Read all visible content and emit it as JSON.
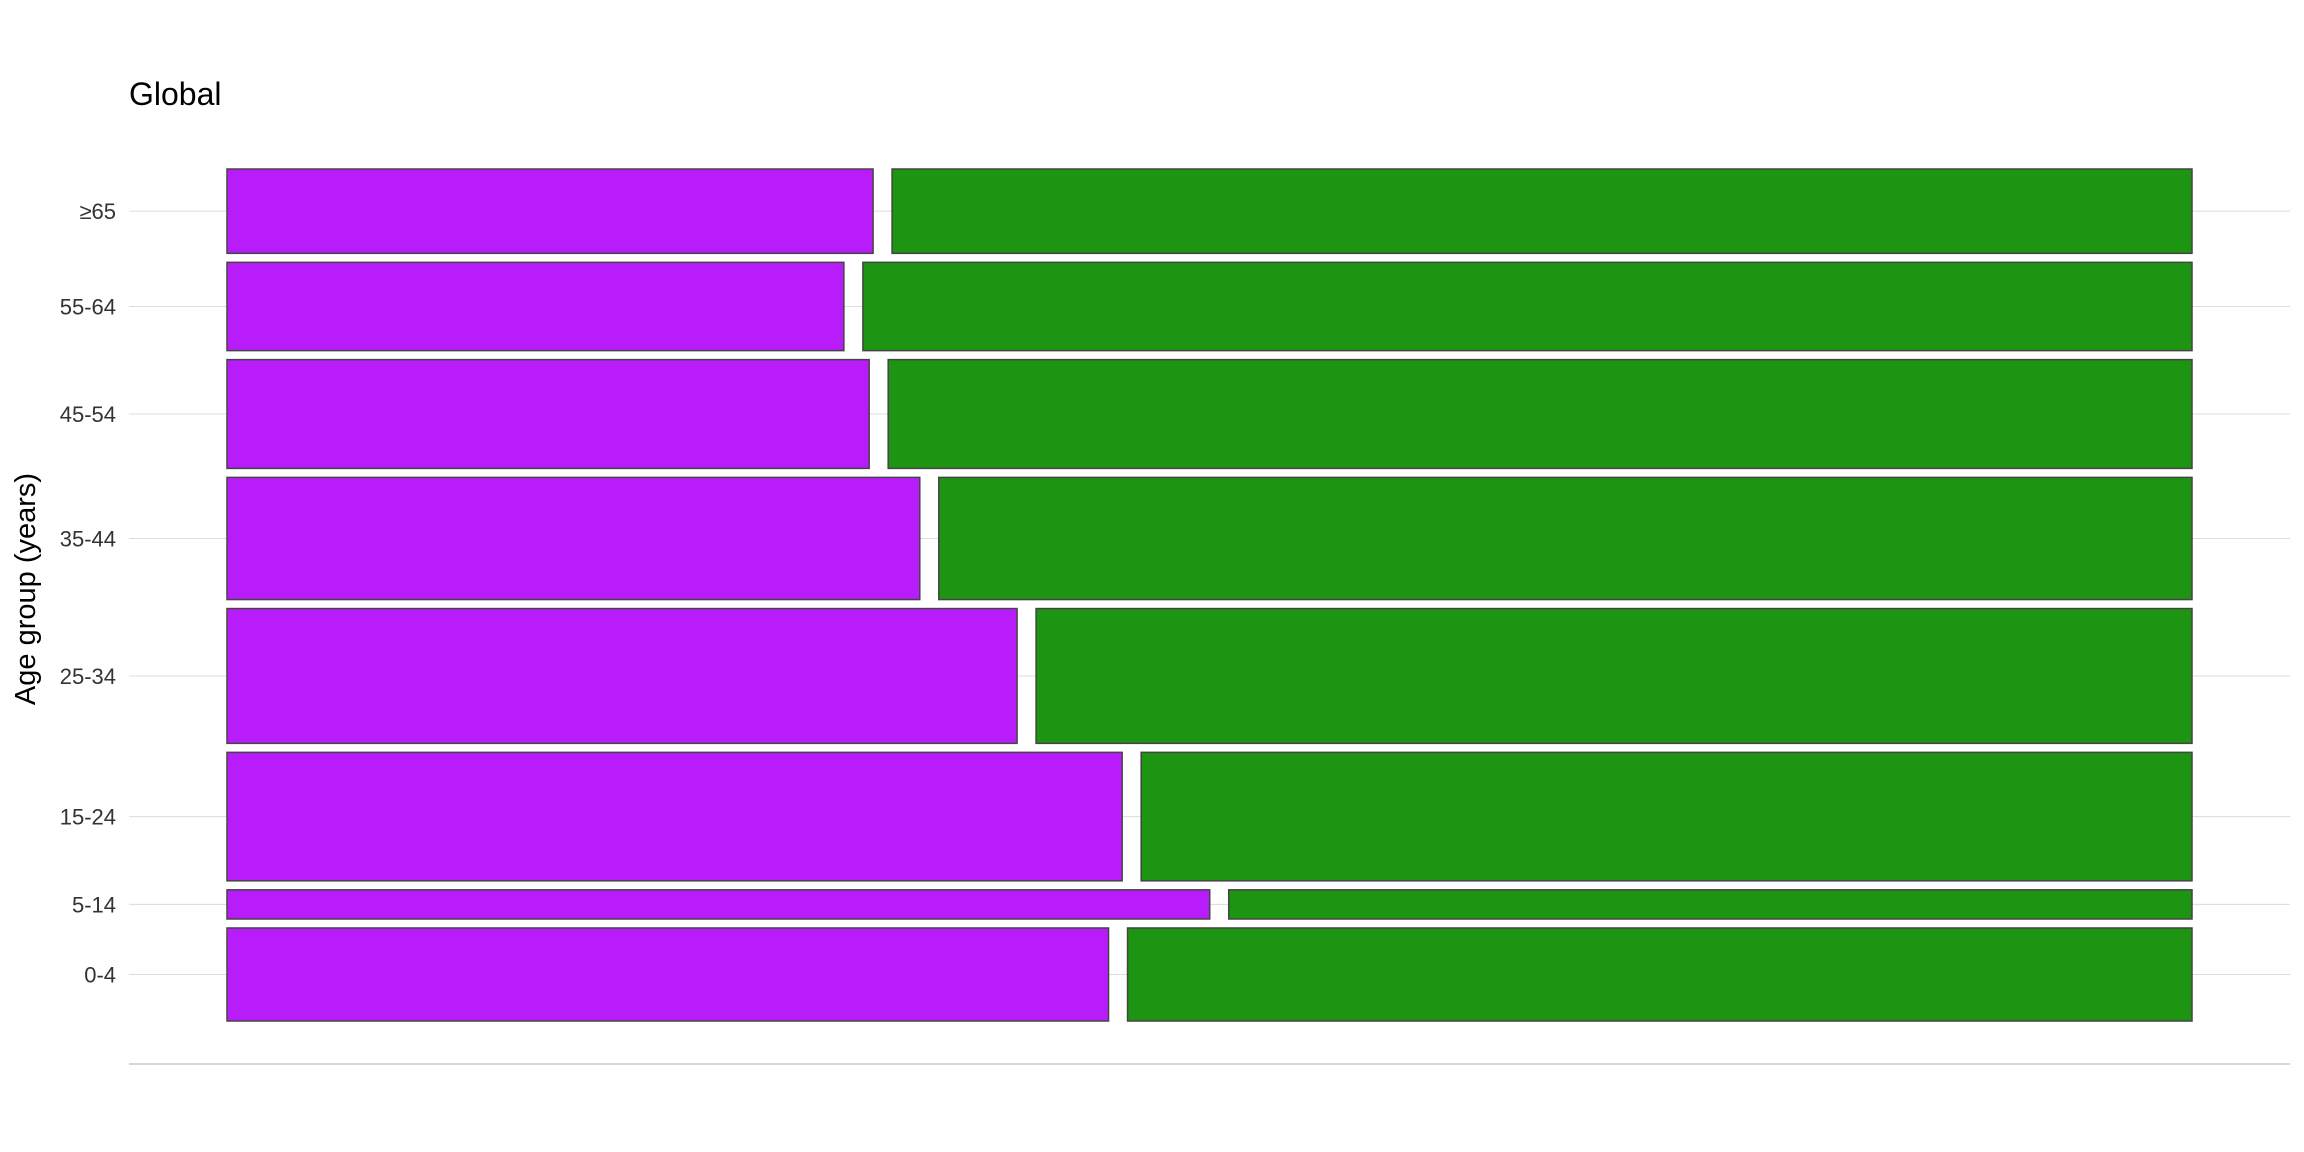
{
  "chart_data": {
    "type": "mosaic",
    "title": "Global",
    "xlabel": "",
    "ylabel": "Age group (years)",
    "categories": [
      "0-4",
      "5-14",
      "15-24",
      "25-34",
      "35-44",
      "45-54",
      "55-64",
      "≥65"
    ],
    "row_share": [
      0.118,
      0.037,
      0.163,
      0.171,
      0.155,
      0.138,
      0.112,
      0.107
    ],
    "series": [
      {
        "color": "#B81CFA",
        "values": [
          0.453,
          0.505,
          0.46,
          0.406,
          0.356,
          0.33,
          0.317,
          0.332
        ]
      },
      {
        "color": "#1E9512",
        "values": [
          0.547,
          0.495,
          0.54,
          0.594,
          0.644,
          0.67,
          0.683,
          0.668
        ]
      }
    ],
    "grid": true,
    "legend": "none",
    "x_ticks": "none"
  }
}
